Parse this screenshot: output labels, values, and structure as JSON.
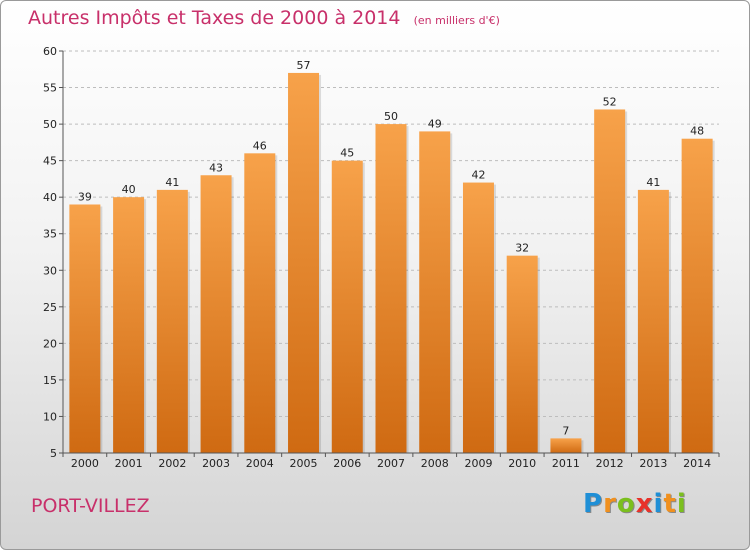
{
  "header": {
    "title": "Autres Impôts et Taxes de 2000 à 2014",
    "unit": "(en milliers d'€)"
  },
  "footer": {
    "commune": "PORT-VILLEZ",
    "logo_letters": [
      "P",
      "r",
      "o",
      "x",
      "i",
      "t",
      "i"
    ]
  },
  "colors": {
    "bar_top": "#f7a24a",
    "bar_bottom": "#cf6a12",
    "title": "#c8306a",
    "logo": [
      "#1f8fd6",
      "#f0901e",
      "#7bbf1e",
      "#e8322a",
      "#1f8fd6",
      "#f0901e",
      "#7bbf1e"
    ]
  },
  "chart_data": {
    "type": "bar",
    "title": "Autres Impôts et Taxes de 2000 à 2014",
    "categories": [
      "2000",
      "2001",
      "2002",
      "2003",
      "2004",
      "2005",
      "2006",
      "2007",
      "2008",
      "2009",
      "2010",
      "2011",
      "2012",
      "2013",
      "2014"
    ],
    "values": [
      39,
      40,
      41,
      43,
      46,
      57,
      45,
      50,
      49,
      42,
      32,
      7,
      52,
      41,
      48
    ],
    "ylim": [
      5,
      60
    ],
    "yticks": [
      5,
      10,
      15,
      20,
      25,
      30,
      35,
      40,
      45,
      50,
      55,
      60
    ],
    "grid": "horizontal-dashed",
    "legend": "none"
  }
}
